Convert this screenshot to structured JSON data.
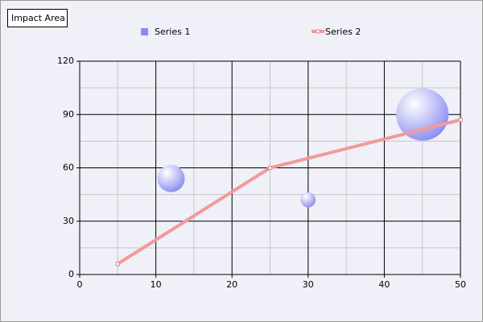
{
  "chart_data": {
    "type": "bubble",
    "title": "Impact Area",
    "series": [
      {
        "name": "Series 1",
        "type": "bubble",
        "color": "#8a8cf0",
        "x": [
          12,
          30,
          45
        ],
        "values": [
          54,
          42,
          90
        ],
        "sizes": [
          30,
          9,
          110
        ]
      },
      {
        "name": "Series 2",
        "type": "line",
        "color": "#f29a9a",
        "x": [
          5,
          25,
          50
        ],
        "values": [
          6,
          60,
          87
        ]
      }
    ],
    "xlim": [
      0,
      50
    ],
    "xticks": [
      0,
      10,
      20,
      30,
      40,
      50
    ],
    "ylim": [
      0,
      120
    ],
    "yticks": [
      0,
      30,
      60,
      90,
      120
    ],
    "grid": true,
    "x_minor_grid": [
      5,
      15,
      25,
      35,
      45
    ],
    "y_minor_grid": [
      15,
      45,
      75,
      105
    ]
  }
}
